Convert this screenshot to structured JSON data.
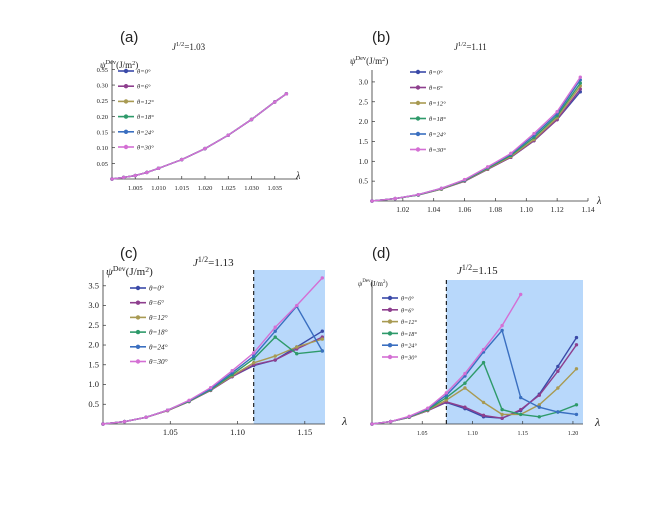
{
  "figure": {
    "panel_count": 4
  },
  "chart_data": [
    {
      "panel_label": "(a)",
      "type": "line",
      "title_prefix": "J",
      "title_sup": "1/2",
      "title_suffix": "=1.03",
      "ylabel_main": "ψ",
      "ylabel_sup": "Dev",
      "ylabel_unit": "(J/m",
      "ylabel_unit_sup": "2",
      "ylabel_close": ")",
      "xlabel": "λ",
      "xlim": [
        1.0,
        1.04
      ],
      "ylim": [
        0,
        0.38
      ],
      "x_ticks": [
        "1.005",
        "1.010",
        "1.015",
        "1.020",
        "1.025",
        "1.030",
        "1.035"
      ],
      "x_tick_values": [
        1.005,
        1.01,
        1.015,
        1.02,
        1.025,
        1.03,
        1.035
      ],
      "y_ticks": [
        "0.05",
        "0.10",
        "0.15",
        "0.20",
        "0.25",
        "0.30",
        "0.35"
      ],
      "y_tick_values": [
        0.05,
        0.1,
        0.15,
        0.2,
        0.25,
        0.3,
        0.35
      ],
      "shade_from": null,
      "x": [
        1.0,
        1.0025,
        1.005,
        1.0075,
        1.01,
        1.015,
        1.02,
        1.025,
        1.03,
        1.035,
        1.0375
      ],
      "series": [
        {
          "name": "θ=0°",
          "color": "#3b4aa8",
          "values": [
            0,
            0.005,
            0.011,
            0.021,
            0.034,
            0.062,
            0.097,
            0.14,
            0.19,
            0.246,
            0.272
          ]
        },
        {
          "name": "θ=6°",
          "color": "#8e3f8e",
          "values": [
            0,
            0.005,
            0.011,
            0.021,
            0.034,
            0.062,
            0.097,
            0.14,
            0.19,
            0.246,
            0.272
          ]
        },
        {
          "name": "θ=12°",
          "color": "#a89a52",
          "values": [
            0,
            0.005,
            0.011,
            0.021,
            0.034,
            0.062,
            0.097,
            0.14,
            0.19,
            0.246,
            0.272
          ]
        },
        {
          "name": "θ=18°",
          "color": "#2e9a6a",
          "values": [
            0,
            0.005,
            0.011,
            0.021,
            0.034,
            0.062,
            0.097,
            0.14,
            0.19,
            0.246,
            0.272
          ]
        },
        {
          "name": "θ=24°",
          "color": "#3a6fc0",
          "values": [
            0,
            0.005,
            0.011,
            0.021,
            0.034,
            0.062,
            0.097,
            0.14,
            0.19,
            0.246,
            0.272
          ]
        },
        {
          "name": "θ=30°",
          "color": "#d46fd4",
          "values": [
            0,
            0.005,
            0.011,
            0.021,
            0.034,
            0.062,
            0.097,
            0.14,
            0.19,
            0.246,
            0.272
          ]
        }
      ]
    },
    {
      "panel_label": "(b)",
      "type": "line",
      "title_prefix": "J",
      "title_sup": "1/2",
      "title_suffix": "=1.11",
      "ylabel_main": "ψ",
      "ylabel_sup": "Dev",
      "ylabel_unit": "(J/m",
      "ylabel_unit_sup": "2",
      "ylabel_close": ")",
      "xlabel": "λ",
      "xlim": [
        1.0,
        1.14
      ],
      "ylim": [
        0,
        3.3
      ],
      "x_ticks": [
        "1.02",
        "1.04",
        "1.06",
        "1.08",
        "1.10",
        "1.12",
        "1.14"
      ],
      "x_tick_values": [
        1.02,
        1.04,
        1.06,
        1.08,
        1.1,
        1.12,
        1.14
      ],
      "y_ticks": [
        "0.5",
        "1.0",
        "1.5",
        "2.0",
        "2.5",
        "3.0"
      ],
      "y_tick_values": [
        0.5,
        1.0,
        1.5,
        2.0,
        2.5,
        3.0
      ],
      "shade_from": null,
      "x": [
        1.0,
        1.015,
        1.03,
        1.045,
        1.06,
        1.075,
        1.09,
        1.105,
        1.12,
        1.135
      ],
      "series": [
        {
          "name": "θ=0°",
          "color": "#3b4aa8",
          "values": [
            0,
            0.06,
            0.15,
            0.3,
            0.5,
            0.8,
            1.1,
            1.52,
            2.05,
            2.75
          ]
        },
        {
          "name": "θ=6°",
          "color": "#8e3f8e",
          "values": [
            0,
            0.06,
            0.15,
            0.3,
            0.5,
            0.8,
            1.1,
            1.52,
            2.05,
            2.82
          ]
        },
        {
          "name": "θ=12°",
          "color": "#a89a52",
          "values": [
            0,
            0.06,
            0.15,
            0.3,
            0.51,
            0.81,
            1.12,
            1.55,
            2.1,
            2.9
          ]
        },
        {
          "name": "θ=18°",
          "color": "#2e9a6a",
          "values": [
            0,
            0.06,
            0.15,
            0.31,
            0.52,
            0.83,
            1.15,
            1.6,
            2.15,
            2.97
          ]
        },
        {
          "name": "θ=24°",
          "color": "#3a6fc0",
          "values": [
            0,
            0.06,
            0.16,
            0.32,
            0.53,
            0.85,
            1.18,
            1.65,
            2.2,
            3.05
          ]
        },
        {
          "name": "θ=30°",
          "color": "#d46fd4",
          "values": [
            0,
            0.06,
            0.16,
            0.32,
            0.54,
            0.86,
            1.2,
            1.7,
            2.25,
            3.12
          ]
        }
      ]
    },
    {
      "panel_label": "(c)",
      "type": "line",
      "title_prefix": "J",
      "title_sup": "1/2",
      "title_suffix": "=1.13",
      "ylabel_main": "ψ",
      "ylabel_sup": "Dev",
      "ylabel_unit": "(J/m",
      "ylabel_unit_sup": "2",
      "ylabel_close": ")",
      "xlabel": "λ",
      "xlim": [
        1.0,
        1.165
      ],
      "ylim": [
        0,
        3.9
      ],
      "x_ticks": [
        "1.05",
        "1.10",
        "1.15"
      ],
      "x_tick_values": [
        1.05,
        1.1,
        1.15
      ],
      "y_ticks": [
        "0.5",
        "1.0",
        "1.5",
        "2.0",
        "2.5",
        "3.0",
        "3.5"
      ],
      "y_tick_values": [
        0.5,
        1.0,
        1.5,
        2.0,
        2.5,
        3.0,
        3.5
      ],
      "shade_from": 1.112,
      "x": [
        1.0,
        1.016,
        1.032,
        1.048,
        1.064,
        1.08,
        1.096,
        1.112,
        1.128,
        1.144,
        1.163
      ],
      "series": [
        {
          "name": "θ=0°",
          "color": "#3b4aa8",
          "values": [
            0,
            0.06,
            0.17,
            0.34,
            0.57,
            0.85,
            1.2,
            1.48,
            1.62,
            1.95,
            2.35
          ]
        },
        {
          "name": "θ=6°",
          "color": "#8e3f8e",
          "values": [
            0,
            0.06,
            0.17,
            0.34,
            0.57,
            0.85,
            1.2,
            1.5,
            1.62,
            1.9,
            2.2
          ]
        },
        {
          "name": "θ=12°",
          "color": "#a89a52",
          "values": [
            0,
            0.06,
            0.17,
            0.34,
            0.57,
            0.86,
            1.22,
            1.55,
            1.72,
            1.95,
            2.15
          ]
        },
        {
          "name": "θ=18°",
          "color": "#2e9a6a",
          "values": [
            0,
            0.06,
            0.17,
            0.35,
            0.58,
            0.87,
            1.25,
            1.65,
            2.2,
            1.78,
            1.85
          ]
        },
        {
          "name": "θ=24°",
          "color": "#3a6fc0",
          "values": [
            0,
            0.06,
            0.17,
            0.35,
            0.59,
            0.89,
            1.3,
            1.72,
            2.35,
            2.98,
            1.85
          ]
        },
        {
          "name": "θ=30°",
          "color": "#d46fd4",
          "values": [
            0,
            0.06,
            0.17,
            0.35,
            0.6,
            0.92,
            1.35,
            1.8,
            2.45,
            3.0,
            3.7
          ]
        }
      ]
    },
    {
      "panel_label": "(d)",
      "type": "line",
      "title_prefix": "J",
      "title_sup": "1/2",
      "title_suffix": "=1.15",
      "ylabel_main": "ψ",
      "ylabel_sup": "Dev",
      "ylabel_unit": "(J/m",
      "ylabel_unit_sup": "2",
      "ylabel_close": ")",
      "xlabel": "λ",
      "xlim": [
        1.0,
        1.21
      ],
      "ylim": [
        0,
        3.0
      ],
      "x_ticks": [
        "1.05",
        "1.10",
        "1.15",
        "1.20"
      ],
      "x_tick_values": [
        1.05,
        1.1,
        1.15,
        1.2
      ],
      "y_ticks": [],
      "y_tick_values": [],
      "shade_from": 1.074,
      "x": [
        1.0,
        1.0185,
        1.037,
        1.0555,
        1.074,
        1.0925,
        1.111,
        1.1295,
        1.148,
        1.1665,
        1.185,
        1.2035
      ],
      "series": [
        {
          "name": "θ=0°",
          "color": "#3b4aa8",
          "values": [
            0,
            0.05,
            0.14,
            0.28,
            0.45,
            0.32,
            0.15,
            0.12,
            0.28,
            0.62,
            1.2,
            1.8
          ]
        },
        {
          "name": "θ=6°",
          "color": "#8e3f8e",
          "values": [
            0,
            0.05,
            0.14,
            0.28,
            0.46,
            0.35,
            0.18,
            0.12,
            0.3,
            0.6,
            1.1,
            1.65
          ]
        },
        {
          "name": "θ=12°",
          "color": "#a89a52",
          "values": [
            0,
            0.05,
            0.14,
            0.29,
            0.5,
            0.75,
            0.45,
            0.2,
            0.2,
            0.4,
            0.75,
            1.15
          ]
        },
        {
          "name": "θ=18°",
          "color": "#2e9a6a",
          "values": [
            0,
            0.05,
            0.15,
            0.3,
            0.55,
            0.85,
            1.28,
            0.3,
            0.2,
            0.15,
            0.25,
            0.4
          ]
        },
        {
          "name": "θ=24°",
          "color": "#3a6fc0",
          "values": [
            0,
            0.05,
            0.15,
            0.32,
            0.6,
            1.0,
            1.5,
            1.95,
            0.55,
            0.35,
            0.25,
            0.2
          ]
        },
        {
          "name": "θ=30°",
          "color": "#d46fd4",
          "values": [
            0,
            0.05,
            0.16,
            0.33,
            0.65,
            1.05,
            1.55,
            2.05,
            2.7,
            null,
            null,
            null
          ]
        }
      ]
    }
  ]
}
